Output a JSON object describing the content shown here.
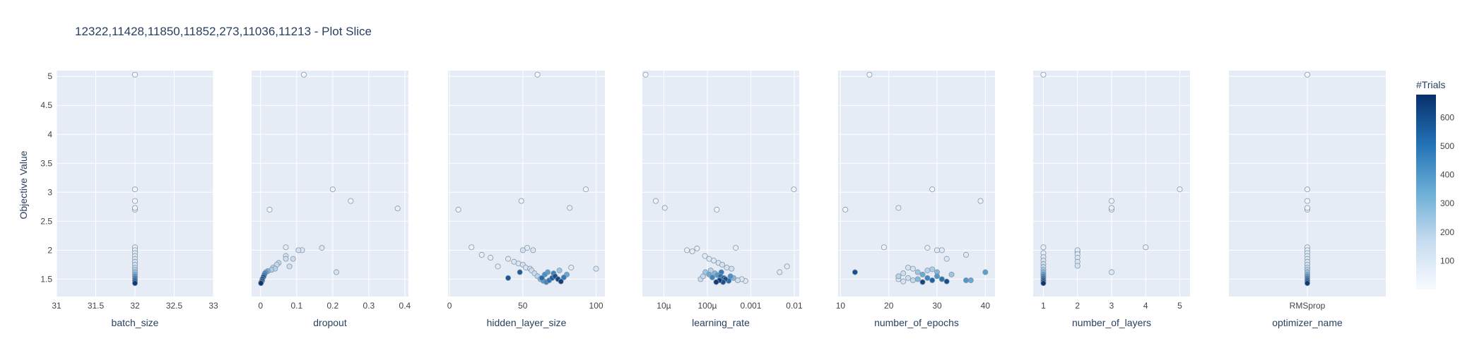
{
  "chart_data": {
    "type": "scatter",
    "title": "12322,11428,11850,11852,273,11036,11213 - Plot Slice",
    "ylabel": "Objective Value",
    "ylim": [
      1.2,
      5.1
    ],
    "yticks": [
      1.5,
      2,
      2.5,
      3,
      3.5,
      4,
      4.5,
      5
    ],
    "yticklabels": [
      "1.5",
      "2",
      "2.5",
      "3",
      "3.5",
      "4",
      "4.5",
      "5"
    ],
    "colorbar": {
      "title": "#Trials",
      "range": [
        0,
        680
      ],
      "ticks": [
        100,
        200,
        300,
        400,
        500,
        600
      ],
      "ticklabels": [
        "100",
        "200",
        "300",
        "400",
        "500",
        "600"
      ],
      "colors": [
        "#f7fbff",
        "#c6dbef",
        "#6baed6",
        "#2171b5",
        "#08306b"
      ]
    },
    "panels": [
      {
        "xlabel": "batch_size",
        "scale": "linear",
        "xlim": [
          31,
          33
        ],
        "xticks": [
          31,
          31.5,
          32,
          32.5,
          33
        ],
        "xticklabels": [
          "31",
          "31.5",
          "32",
          "32.5",
          "33"
        ],
        "points": [
          [
            32,
            5.03,
            5
          ],
          [
            32,
            3.05,
            30
          ],
          [
            32,
            2.85,
            20
          ],
          [
            32,
            2.73,
            40
          ],
          [
            32,
            2.7,
            15
          ],
          [
            32,
            2.05,
            50
          ],
          [
            32,
            2.0,
            60
          ],
          [
            32,
            1.95,
            80
          ],
          [
            32,
            1.9,
            90
          ],
          [
            32,
            1.85,
            100
          ],
          [
            32,
            1.8,
            110
          ],
          [
            32,
            1.75,
            130
          ],
          [
            32,
            1.7,
            160
          ],
          [
            32,
            1.66,
            200
          ],
          [
            32,
            1.62,
            260
          ],
          [
            32,
            1.58,
            320
          ],
          [
            32,
            1.55,
            400
          ],
          [
            32,
            1.52,
            470
          ],
          [
            32,
            1.49,
            540
          ],
          [
            32,
            1.46,
            600
          ],
          [
            32,
            1.43,
            650
          ]
        ]
      },
      {
        "xlabel": "dropout",
        "scale": "linear",
        "xlim": [
          -0.025,
          0.41
        ],
        "xticks": [
          0,
          0.1,
          0.2,
          0.3,
          0.4
        ],
        "xticklabels": [
          "0",
          "0.1",
          "0.2",
          "0.3",
          "0.4"
        ],
        "points": [
          [
            0.12,
            5.03,
            5
          ],
          [
            0.2,
            3.05,
            40
          ],
          [
            0.25,
            2.85,
            30
          ],
          [
            0.38,
            2.72,
            60
          ],
          [
            0.025,
            2.7,
            20
          ],
          [
            0.07,
            2.05,
            80
          ],
          [
            0.17,
            2.04,
            100
          ],
          [
            0.105,
            2.0,
            120
          ],
          [
            0.115,
            2.0,
            90
          ],
          [
            0.07,
            1.9,
            140
          ],
          [
            0.07,
            1.85,
            150
          ],
          [
            0.09,
            1.85,
            160
          ],
          [
            0.05,
            1.78,
            170
          ],
          [
            0.21,
            1.62,
            120
          ],
          [
            0.045,
            1.75,
            180
          ],
          [
            0.035,
            1.7,
            190
          ],
          [
            0.04,
            1.68,
            200
          ],
          [
            0.03,
            1.66,
            220
          ],
          [
            0.02,
            1.64,
            300
          ],
          [
            0.015,
            1.62,
            380
          ],
          [
            0.012,
            1.6,
            450
          ],
          [
            0.01,
            1.57,
            500
          ],
          [
            0.008,
            1.54,
            560
          ],
          [
            0.005,
            1.5,
            600
          ],
          [
            0.004,
            1.47,
            620
          ],
          [
            0.002,
            1.45,
            650
          ],
          [
            0.001,
            1.43,
            660
          ],
          [
            0.08,
            1.72,
            150
          ]
        ]
      },
      {
        "xlabel": "hidden_layer_size",
        "scale": "linear",
        "xlim": [
          -1,
          106
        ],
        "xticks": [
          0,
          50,
          100
        ],
        "xticklabels": [
          "0",
          "50",
          "100"
        ],
        "points": [
          [
            60,
            5.03,
            5
          ],
          [
            49,
            2.85,
            40
          ],
          [
            93,
            3.05,
            30
          ],
          [
            82,
            2.73,
            60
          ],
          [
            6,
            2.7,
            20
          ],
          [
            15,
            2.05,
            50
          ],
          [
            22,
            1.92,
            60
          ],
          [
            28,
            1.87,
            70
          ],
          [
            33,
            1.72,
            80
          ],
          [
            40,
            1.85,
            90
          ],
          [
            44,
            1.8,
            100
          ],
          [
            47,
            1.77,
            110
          ],
          [
            50,
            1.75,
            120
          ],
          [
            52,
            1.7,
            130
          ],
          [
            55,
            1.68,
            140
          ],
          [
            56,
            1.65,
            150
          ],
          [
            58,
            1.6,
            160
          ],
          [
            50,
            2.0,
            120
          ],
          [
            53,
            2.04,
            90
          ],
          [
            57,
            2.0,
            100
          ],
          [
            60,
            1.55,
            200
          ],
          [
            62,
            1.5,
            300
          ],
          [
            64,
            1.47,
            400
          ],
          [
            66,
            1.45,
            450
          ],
          [
            68,
            1.48,
            500
          ],
          [
            70,
            1.52,
            550
          ],
          [
            72,
            1.55,
            600
          ],
          [
            74,
            1.5,
            620
          ],
          [
            76,
            1.46,
            640
          ],
          [
            78,
            1.53,
            480
          ],
          [
            80,
            1.58,
            350
          ],
          [
            83,
            1.7,
            80
          ],
          [
            65,
            1.58,
            420
          ],
          [
            67,
            1.62,
            380
          ],
          [
            71,
            1.6,
            460
          ],
          [
            63,
            1.52,
            520
          ],
          [
            48,
            1.62,
            560
          ],
          [
            40,
            1.52,
            580
          ],
          [
            100,
            1.68,
            100
          ],
          [
            75,
            1.65,
            250
          ]
        ]
      },
      {
        "xlabel": "learning_rate",
        "scale": "log",
        "xlim": [
          3.2e-06,
          0.013
        ],
        "xticks": [
          1e-05,
          0.0001,
          0.001,
          0.01
        ],
        "xticklabels": [
          "10µ",
          "100µ",
          "0.001",
          "0.01"
        ],
        "points": [
          [
            3.8e-06,
            5.03,
            5
          ],
          [
            6.5e-06,
            2.85,
            40
          ],
          [
            1.05e-05,
            2.73,
            60
          ],
          [
            0.000165,
            2.7,
            20
          ],
          [
            0.0098,
            3.05,
            30
          ],
          [
            0.0068,
            1.72,
            80
          ],
          [
            0.0046,
            1.62,
            90
          ],
          [
            3.4e-05,
            2.0,
            50
          ],
          [
            4.5e-05,
            1.98,
            60
          ],
          [
            5.8e-05,
            2.03,
            70
          ],
          [
            8.8e-05,
            1.9,
            80
          ],
          [
            0.00011,
            1.85,
            90
          ],
          [
            0.00014,
            1.82,
            100
          ],
          [
            0.00018,
            1.78,
            110
          ],
          [
            0.00022,
            1.75,
            120
          ],
          [
            0.00028,
            1.7,
            130
          ],
          [
            0.00036,
            1.68,
            140
          ],
          [
            0.00045,
            2.04,
            60
          ],
          [
            0.00012,
            1.65,
            200
          ],
          [
            0.00015,
            1.6,
            300
          ],
          [
            0.00017,
            1.57,
            400
          ],
          [
            0.0002,
            1.55,
            500
          ],
          [
            0.00024,
            1.52,
            560
          ],
          [
            0.00026,
            1.5,
            600
          ],
          [
            0.00019,
            1.48,
            640
          ],
          [
            0.00016,
            1.45,
            650
          ],
          [
            0.00013,
            1.53,
            450
          ],
          [
            0.00011,
            1.58,
            350
          ],
          [
            9e-05,
            1.62,
            250
          ],
          [
            0.00031,
            1.47,
            520
          ],
          [
            0.00034,
            1.55,
            420
          ],
          [
            0.0004,
            1.52,
            300
          ],
          [
            0.0005,
            1.48,
            150
          ],
          [
            0.00062,
            1.5,
            100
          ],
          [
            0.00075,
            1.47,
            90
          ],
          [
            8e-05,
            1.55,
            180
          ],
          [
            7e-05,
            1.5,
            150
          ],
          [
            0.00021,
            1.62,
            480
          ],
          [
            0.00023,
            1.45,
            600
          ]
        ]
      },
      {
        "xlabel": "number_of_epochs",
        "scale": "linear",
        "xlim": [
          9.5,
          42
        ],
        "xticks": [
          10,
          20,
          30,
          40
        ],
        "xticklabels": [
          "10",
          "20",
          "30",
          "40"
        ],
        "points": [
          [
            16,
            5.03,
            5
          ],
          [
            29,
            3.05,
            30
          ],
          [
            39,
            2.85,
            40
          ],
          [
            11,
            2.7,
            20
          ],
          [
            22,
            2.73,
            60
          ],
          [
            19,
            2.05,
            50
          ],
          [
            28,
            2.04,
            60
          ],
          [
            30,
            2.0,
            70
          ],
          [
            31,
            2.0,
            80
          ],
          [
            36,
            1.92,
            90
          ],
          [
            32,
            1.85,
            100
          ],
          [
            13,
            1.62,
            600
          ],
          [
            22,
            1.55,
            200
          ],
          [
            23,
            1.6,
            150
          ],
          [
            24,
            1.7,
            120
          ],
          [
            25,
            1.68,
            130
          ],
          [
            26,
            1.62,
            250
          ],
          [
            27,
            1.58,
            350
          ],
          [
            28,
            1.52,
            450
          ],
          [
            29,
            1.48,
            550
          ],
          [
            30,
            1.55,
            400
          ],
          [
            31,
            1.5,
            500
          ],
          [
            32,
            1.46,
            600
          ],
          [
            27,
            1.45,
            620
          ],
          [
            26,
            1.5,
            300
          ],
          [
            25,
            1.48,
            180
          ],
          [
            24,
            1.52,
            150
          ],
          [
            23,
            1.46,
            120
          ],
          [
            22,
            1.5,
            100
          ],
          [
            36,
            1.48,
            400
          ],
          [
            37,
            1.48,
            350
          ],
          [
            40,
            1.62,
            380
          ],
          [
            33,
            1.58,
            250
          ],
          [
            28,
            1.65,
            200
          ],
          [
            30,
            1.62,
            300
          ],
          [
            29,
            1.67,
            220
          ]
        ]
      },
      {
        "xlabel": "number_of_layers",
        "scale": "linear",
        "xlim": [
          0.7,
          5.3
        ],
        "xticks": [
          1,
          2,
          3,
          4,
          5
        ],
        "xticklabels": [
          "1",
          "2",
          "3",
          "4",
          "5"
        ],
        "points": [
          [
            1,
            5.03,
            5
          ],
          [
            5,
            3.05,
            30
          ],
          [
            3,
            2.85,
            40
          ],
          [
            3,
            2.73,
            60
          ],
          [
            3,
            2.7,
            20
          ],
          [
            4,
            2.05,
            50
          ],
          [
            3,
            1.62,
            90
          ],
          [
            2,
            2.0,
            80
          ],
          [
            2,
            1.97,
            70
          ],
          [
            2,
            1.93,
            90
          ],
          [
            2,
            1.87,
            100
          ],
          [
            2,
            1.8,
            110
          ],
          [
            2,
            1.73,
            120
          ],
          [
            1,
            2.05,
            60
          ],
          [
            1,
            1.95,
            80
          ],
          [
            1,
            1.88,
            100
          ],
          [
            1,
            1.82,
            120
          ],
          [
            1,
            1.76,
            150
          ],
          [
            1,
            1.71,
            180
          ],
          [
            1,
            1.66,
            230
          ],
          [
            1,
            1.62,
            300
          ],
          [
            1,
            1.58,
            380
          ],
          [
            1,
            1.55,
            450
          ],
          [
            1,
            1.52,
            520
          ],
          [
            1,
            1.49,
            580
          ],
          [
            1,
            1.46,
            630
          ],
          [
            1,
            1.43,
            660
          ]
        ]
      },
      {
        "xlabel": "optimizer_name",
        "scale": "category",
        "xlim": [
          -0.5,
          0.5
        ],
        "categories": [
          "RMSprop"
        ],
        "xticks": [
          0
        ],
        "xticklabels": [
          "RMSprop"
        ],
        "points": [
          [
            0,
            5.03,
            5
          ],
          [
            0,
            3.05,
            30
          ],
          [
            0,
            2.85,
            20
          ],
          [
            0,
            2.73,
            40
          ],
          [
            0,
            2.7,
            15
          ],
          [
            0,
            2.05,
            50
          ],
          [
            0,
            2.0,
            60
          ],
          [
            0,
            1.95,
            80
          ],
          [
            0,
            1.9,
            90
          ],
          [
            0,
            1.85,
            100
          ],
          [
            0,
            1.8,
            110
          ],
          [
            0,
            1.75,
            130
          ],
          [
            0,
            1.7,
            160
          ],
          [
            0,
            1.66,
            200
          ],
          [
            0,
            1.62,
            260
          ],
          [
            0,
            1.58,
            320
          ],
          [
            0,
            1.55,
            400
          ],
          [
            0,
            1.52,
            470
          ],
          [
            0,
            1.49,
            540
          ],
          [
            0,
            1.46,
            600
          ],
          [
            0,
            1.43,
            650
          ]
        ]
      }
    ]
  }
}
